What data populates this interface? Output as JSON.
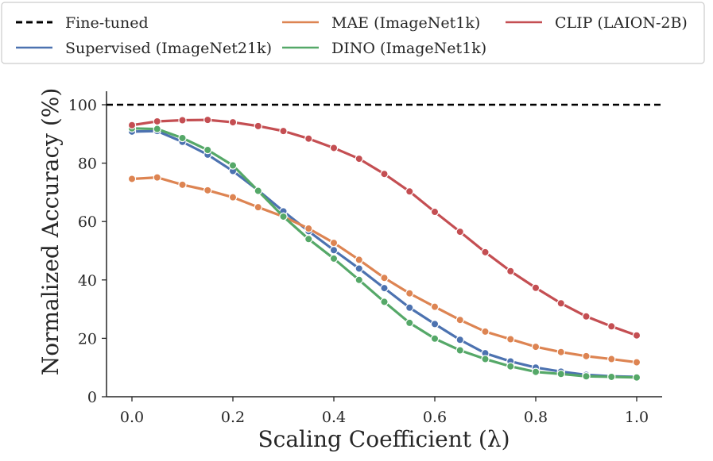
{
  "chart_data": {
    "type": "line",
    "title": "",
    "xlabel": "Scaling Coefficient (λ)",
    "ylabel": "Normalized Accuracy (%)",
    "xlim": [
      -0.05,
      1.05
    ],
    "ylim": [
      0,
      105
    ],
    "xticks": [
      0.0,
      0.2,
      0.4,
      0.6,
      0.8,
      1.0
    ],
    "xtick_labels": [
      "0.0",
      "0.2",
      "0.4",
      "0.6",
      "0.8",
      "1.0"
    ],
    "yticks": [
      0,
      20,
      40,
      60,
      80,
      100
    ],
    "ytick_labels": [
      "0",
      "20",
      "40",
      "60",
      "80",
      "100"
    ],
    "grid": false,
    "legend_position": "top (outside, above plot)",
    "reference_line": {
      "name": "Fine-tuned",
      "y": 100,
      "style": "dashed",
      "color": "#000000"
    },
    "x": [
      0.0,
      0.05,
      0.1,
      0.15,
      0.2,
      0.25,
      0.3,
      0.35,
      0.4,
      0.45,
      0.5,
      0.55,
      0.6,
      0.65,
      0.7,
      0.75,
      0.8,
      0.85,
      0.9,
      0.95,
      1.0
    ],
    "series": [
      {
        "name": "Supervised (ImageNet21k)",
        "color": "#4c72b0",
        "values": [
          90.8,
          91.0,
          87.3,
          82.9,
          77.3,
          70.7,
          63.5,
          56.7,
          50.2,
          43.9,
          37.2,
          30.5,
          24.9,
          19.5,
          14.9,
          12.1,
          10.0,
          8.6,
          7.5,
          7.0,
          6.8
        ]
      },
      {
        "name": "MAE (ImageNet1k)",
        "color": "#dd8452",
        "values": [
          74.6,
          75.1,
          72.6,
          70.7,
          68.3,
          64.9,
          61.7,
          57.6,
          52.7,
          46.9,
          40.7,
          35.4,
          30.8,
          26.3,
          22.3,
          19.7,
          17.1,
          15.3,
          13.9,
          12.9,
          11.8
        ]
      },
      {
        "name": "DINO (ImageNet1k)",
        "color": "#55a868",
        "values": [
          91.9,
          91.7,
          88.6,
          84.5,
          79.2,
          70.5,
          61.7,
          54.0,
          47.3,
          40.0,
          32.5,
          25.3,
          19.9,
          15.9,
          12.9,
          10.4,
          8.5,
          7.8,
          7.0,
          6.8,
          6.6
        ]
      },
      {
        "name": "CLIP (LAION-2B)",
        "color": "#c44e52",
        "values": [
          93.0,
          94.3,
          94.7,
          94.8,
          94.0,
          92.7,
          91.0,
          88.4,
          85.2,
          81.5,
          76.3,
          70.3,
          63.3,
          56.5,
          49.5,
          43.0,
          37.3,
          32.0,
          27.5,
          24.1,
          21.0
        ]
      }
    ],
    "legend": {
      "entries": [
        {
          "label": "Fine-tuned",
          "color": "#000000",
          "style": "dashed"
        },
        {
          "label": "Supervised (ImageNet21k)",
          "color": "#4c72b0",
          "style": "solid"
        },
        {
          "label": "MAE (ImageNet1k)",
          "color": "#dd8452",
          "style": "solid"
        },
        {
          "label": "DINO (ImageNet1k)",
          "color": "#55a868",
          "style": "solid"
        },
        {
          "label": "CLIP (LAION-2B)",
          "color": "#c44e52",
          "style": "solid"
        }
      ]
    }
  }
}
